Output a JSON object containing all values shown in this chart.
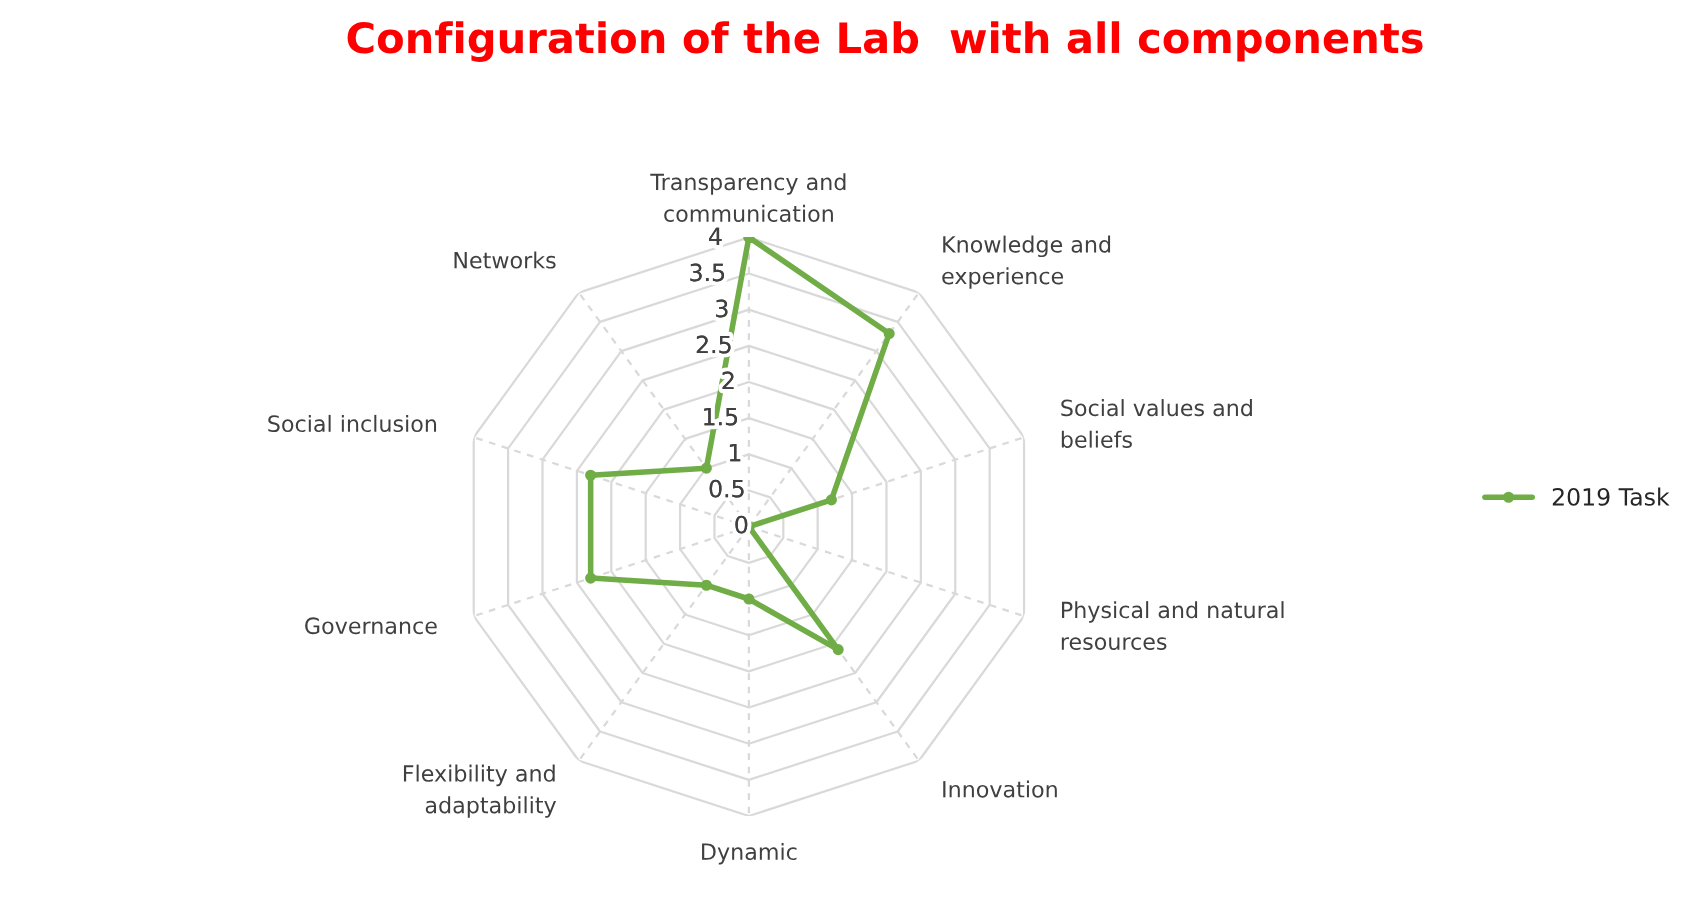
{
  "chart_data": {
    "type": "radar",
    "title": "Configuration of the Lab  with all components",
    "categories": [
      "Transparency and\ncommunication",
      "Knowledge and\nexperience",
      "Social values and\nbeliefs",
      "Physical and natural\nresources",
      "Innovation",
      "Dynamic",
      "Flexibility and\nadaptability",
      "Governance",
      "Social inclusion",
      "Networks"
    ],
    "series": [
      {
        "name": "2019 Task",
        "color": "#70ad47",
        "values": [
          4,
          3.3,
          1.2,
          0,
          2.1,
          1,
          1,
          2.3,
          2.3,
          1
        ]
      }
    ],
    "ylim": [
      0,
      4
    ],
    "yticks": [
      0,
      0.5,
      1,
      1.5,
      2,
      2.5,
      3,
      3.5,
      4
    ],
    "grid": true,
    "legend": "right",
    "marker": "circle"
  }
}
